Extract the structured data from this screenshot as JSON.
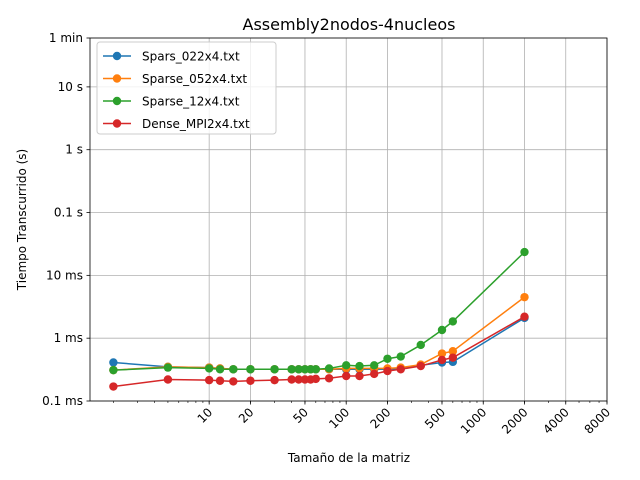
{
  "chart_data": {
    "type": "line",
    "title": "Assembly2nodos-4nucleos",
    "xlabel": "Tamaño de la matriz",
    "ylabel": "Tiempo Transcurrido (s)",
    "x_scale": "log",
    "y_scale": "log",
    "xlim": [
      1.35,
      8000
    ],
    "ylim": [
      0.0001,
      60
    ],
    "grid": true,
    "legend_position": "upper-left",
    "x_ticks": [
      {
        "value": 10,
        "label": "10"
      },
      {
        "value": 20,
        "label": "20"
      },
      {
        "value": 50,
        "label": "50"
      },
      {
        "value": 100,
        "label": "100"
      },
      {
        "value": 200,
        "label": "200"
      },
      {
        "value": 500,
        "label": "500"
      },
      {
        "value": 1000,
        "label": "1000"
      },
      {
        "value": 2000,
        "label": "2000"
      },
      {
        "value": 4000,
        "label": "4000"
      },
      {
        "value": 8000,
        "label": "8000"
      }
    ],
    "y_ticks": [
      {
        "value": 0.0001,
        "label": "0.1 ms"
      },
      {
        "value": 0.001,
        "label": "1 ms"
      },
      {
        "value": 0.01,
        "label": "10 ms"
      },
      {
        "value": 0.1,
        "label": "0.1 s"
      },
      {
        "value": 1,
        "label": "1 s"
      },
      {
        "value": 10,
        "label": "10 s"
      },
      {
        "value": 60,
        "label": "1 min"
      }
    ],
    "series": [
      {
        "name": "Spars_022x4.txt",
        "color": "#1f77b4",
        "x": [
          2,
          5,
          10,
          12,
          15,
          20,
          30,
          40,
          45,
          50,
          55,
          60,
          75,
          100,
          125,
          160,
          200,
          250,
          350,
          500,
          600,
          2000
        ],
        "y": [
          0.00041,
          0.00035,
          0.00034,
          0.00033,
          0.00032,
          0.00032,
          0.00032,
          0.00032,
          0.00032,
          0.00032,
          0.00032,
          0.00032,
          0.00032,
          0.00032,
          0.00032,
          0.00032,
          0.00032,
          0.00033,
          0.00037,
          0.00041,
          0.00042,
          0.0021
        ]
      },
      {
        "name": "Sparse_052x4.txt",
        "color": "#ff7f0e",
        "x": [
          2,
          5,
          10,
          12,
          15,
          20,
          30,
          40,
          45,
          50,
          55,
          60,
          75,
          100,
          125,
          160,
          200,
          250,
          350,
          500,
          600,
          2000
        ],
        "y": [
          0.00031,
          0.00035,
          0.00034,
          0.00033,
          0.00032,
          0.00032,
          0.00032,
          0.00032,
          0.00032,
          0.00032,
          0.00032,
          0.00032,
          0.00032,
          0.00033,
          0.00033,
          0.00033,
          0.00033,
          0.00034,
          0.00038,
          0.00057,
          0.00062,
          0.0045
        ]
      },
      {
        "name": "Sparse_12x4.txt",
        "color": "#2ca02c",
        "x": [
          2,
          5,
          10,
          12,
          15,
          20,
          30,
          40,
          45,
          50,
          55,
          60,
          75,
          100,
          125,
          160,
          200,
          250,
          350,
          500,
          600,
          2000
        ],
        "y": [
          0.00031,
          0.00034,
          0.00033,
          0.00032,
          0.00032,
          0.00032,
          0.00032,
          0.00032,
          0.00032,
          0.00032,
          0.00032,
          0.00032,
          0.00033,
          0.00037,
          0.00036,
          0.00037,
          0.00047,
          0.00051,
          0.00078,
          0.00135,
          0.00185,
          0.0235
        ]
      },
      {
        "name": "Dense_MPI2x4.txt",
        "color": "#d62728",
        "x": [
          2,
          5,
          10,
          12,
          15,
          20,
          30,
          40,
          45,
          50,
          55,
          60,
          75,
          100,
          125,
          160,
          200,
          250,
          350,
          500,
          600,
          2000
        ],
        "y": [
          0.00017,
          0.00022,
          0.000215,
          0.00021,
          0.000205,
          0.00021,
          0.000215,
          0.00022,
          0.00022,
          0.00022,
          0.00022,
          0.000225,
          0.00023,
          0.00025,
          0.00025,
          0.00027,
          0.0003,
          0.00032,
          0.00036,
          0.00045,
          0.00049,
          0.0022
        ]
      }
    ]
  }
}
